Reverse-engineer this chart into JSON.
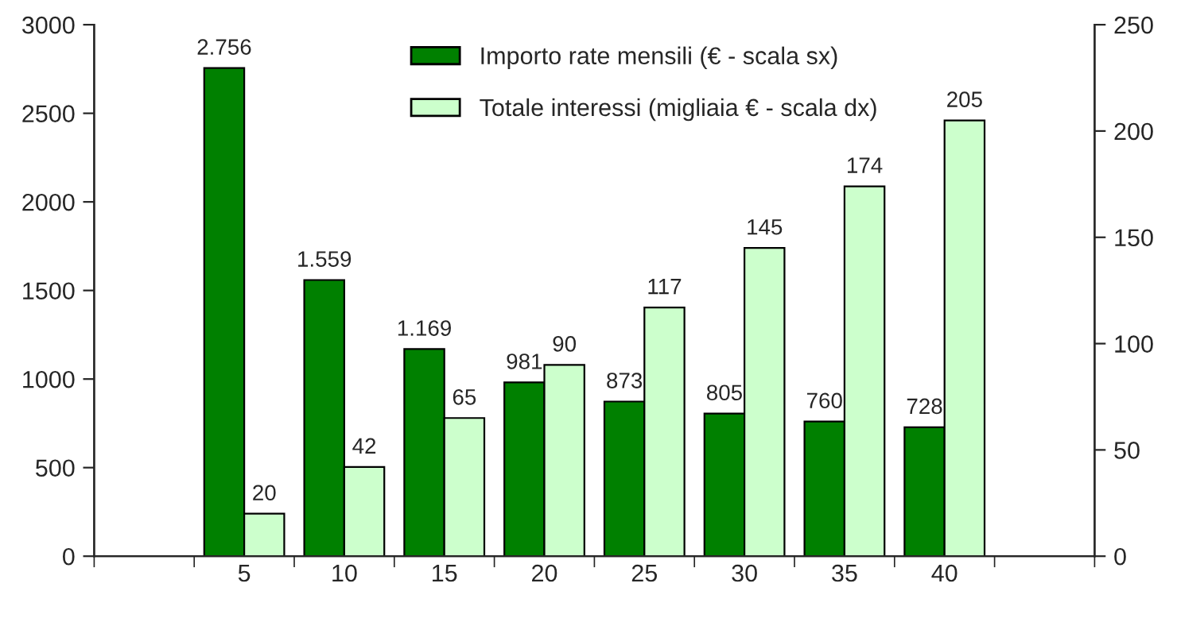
{
  "chart_data": {
    "type": "bar",
    "categories": [
      null,
      "5",
      "10",
      "15",
      "20",
      "25",
      "30",
      "35",
      "40",
      null
    ],
    "series": [
      {
        "name": "Importo rate mensili (€ - scala sx)",
        "color": "#008000",
        "values": [
          null,
          2756,
          1559,
          1169,
          981,
          873,
          805,
          760,
          728,
          null
        ],
        "value_labels": [
          null,
          "2.756",
          "1.559",
          "1.169",
          "981",
          "873",
          "805",
          "760",
          "728",
          null
        ]
      },
      {
        "name": "Totale interessi (migliaia € - scala dx)",
        "color": "#ccffcc",
        "axis": "y2",
        "values": [
          null,
          20,
          42,
          65,
          90,
          117,
          145,
          174,
          205,
          null
        ],
        "value_labels": [
          null,
          "20",
          "42",
          "65",
          "90",
          "117",
          "145",
          "174",
          "205",
          null
        ]
      }
    ],
    "ylim": [
      0,
      3000
    ],
    "yticks": [
      0,
      500,
      1000,
      1500,
      2000,
      2500,
      3000
    ],
    "y2lim": [
      0,
      250
    ],
    "y2ticks": [
      0,
      50,
      100,
      150,
      200,
      250
    ],
    "grid": false,
    "legend": "top"
  }
}
